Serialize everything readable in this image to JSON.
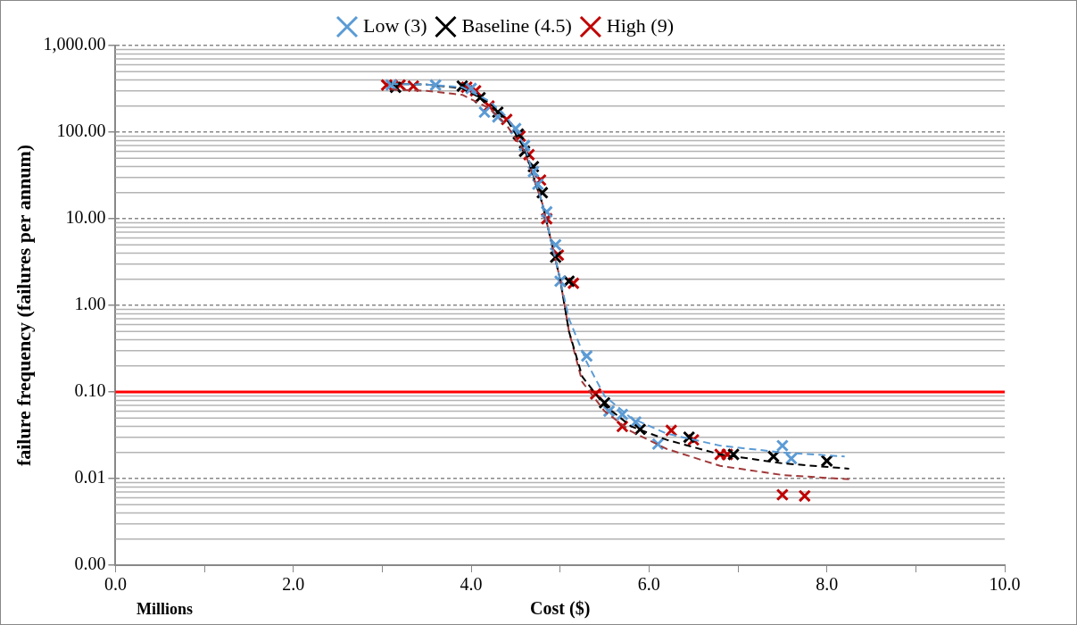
{
  "chart_data": {
    "type": "scatter",
    "xlabel": "Cost ($)",
    "ylabel": "failure frequency (failures per annum)",
    "annotations": [
      "Millions"
    ],
    "log": "y",
    "grid": "y",
    "legend": "top",
    "marker": "cross",
    "xlim": [
      0,
      10
    ],
    "xticks": [
      {
        "value": 0,
        "label": "0.0"
      },
      {
        "value": 1,
        "label": null
      },
      {
        "value": 2,
        "label": "2.0"
      },
      {
        "value": 3,
        "label": null
      },
      {
        "value": 4,
        "label": "4.0"
      },
      {
        "value": 5,
        "label": null
      },
      {
        "value": 6,
        "label": "6.0"
      },
      {
        "value": 7,
        "label": null
      },
      {
        "value": 8,
        "label": "8.0"
      },
      {
        "value": 9,
        "label": null
      },
      {
        "value": 10,
        "label": "10.0"
      }
    ],
    "ylim": [
      0.001,
      1000
    ],
    "yticks": [
      {
        "value": 0.001,
        "label": "0.00"
      },
      {
        "value": 0.01,
        "label": "0.01"
      },
      {
        "value": 0.1,
        "label": "0.10"
      },
      {
        "value": 1,
        "label": "1.00"
      },
      {
        "value": 10,
        "label": "10.00"
      },
      {
        "value": 100,
        "label": "100.00"
      },
      {
        "value": 1000,
        "label": "1,000.00"
      }
    ],
    "ref_lines": [
      {
        "axis": "y",
        "value": 0.1,
        "color": "#ff0000"
      }
    ],
    "series": [
      {
        "name": "Low (3)",
        "color": "#5b9bd5",
        "x": [
          3.1,
          3.6,
          4.0,
          4.15,
          4.3,
          4.5,
          4.6,
          4.7,
          4.75,
          4.85,
          4.95,
          5.0,
          5.3,
          5.55,
          5.7,
          5.85,
          6.1,
          7.5,
          7.6
        ],
        "values": [
          350,
          350,
          320,
          170,
          150,
          110,
          70,
          35,
          25,
          12,
          5,
          1.9,
          0.26,
          0.06,
          0.055,
          0.045,
          0.025,
          0.024,
          0.017
        ]
      },
      {
        "name": "Baseline (4.5)",
        "color": "#000000",
        "x": [
          3.15,
          3.9,
          4.1,
          4.3,
          4.53,
          4.6,
          4.7,
          4.8,
          4.95,
          5.1,
          5.5,
          5.9,
          6.45,
          6.95,
          7.4,
          8.0
        ],
        "values": [
          330,
          340,
          250,
          170,
          95,
          60,
          40,
          20,
          3.6,
          1.9,
          0.075,
          0.037,
          0.03,
          0.019,
          0.018,
          0.016
        ]
      },
      {
        "name": "High (9)",
        "color": "#c00000",
        "x": [
          3.05,
          3.2,
          3.35,
          3.95,
          4.05,
          4.2,
          4.4,
          4.55,
          4.65,
          4.78,
          4.85,
          4.98,
          5.15,
          5.4,
          5.7,
          6.25,
          6.5,
          6.8,
          6.88,
          7.5,
          7.75
        ],
        "values": [
          350,
          350,
          340,
          330,
          300,
          200,
          140,
          90,
          55,
          28,
          10,
          3.8,
          1.8,
          0.095,
          0.04,
          0.036,
          0.028,
          0.019,
          0.019,
          0.0065,
          0.0063
        ]
      },
      {
        "type": "line",
        "line_style": "dashed",
        "marker": "none",
        "color": "#5b9bd5",
        "x": [
          3.1,
          3.5,
          3.9,
          4.2,
          4.4,
          4.6,
          4.8,
          5.0,
          5.1,
          5.3,
          5.5,
          5.8,
          6.2,
          6.8,
          7.5,
          8.2
        ],
        "values": [
          360,
          355,
          330,
          230,
          150,
          70,
          15,
          2,
          0.7,
          0.22,
          0.09,
          0.05,
          0.033,
          0.024,
          0.02,
          0.018
        ]
      },
      {
        "type": "line",
        "line_style": "dashed",
        "marker": "none",
        "color": "#000000",
        "x": [
          3.1,
          3.5,
          3.9,
          4.2,
          4.4,
          4.6,
          4.8,
          5.0,
          5.1,
          5.25,
          5.5,
          5.8,
          6.2,
          6.8,
          7.5,
          8.25
        ],
        "values": [
          360,
          355,
          320,
          220,
          140,
          65,
          15,
          2,
          0.5,
          0.15,
          0.07,
          0.04,
          0.028,
          0.019,
          0.015,
          0.013
        ]
      },
      {
        "type": "line",
        "line_style": "dashed",
        "marker": "none",
        "color": "#a0393a",
        "x": [
          3.1,
          3.5,
          3.9,
          4.2,
          4.4,
          4.6,
          4.8,
          5.0,
          5.1,
          5.25,
          5.5,
          5.8,
          6.2,
          6.8,
          7.5,
          8.25
        ],
        "values": [
          310,
          300,
          270,
          190,
          120,
          60,
          15,
          2,
          0.5,
          0.13,
          0.06,
          0.035,
          0.022,
          0.014,
          0.011,
          0.0098
        ]
      }
    ]
  }
}
